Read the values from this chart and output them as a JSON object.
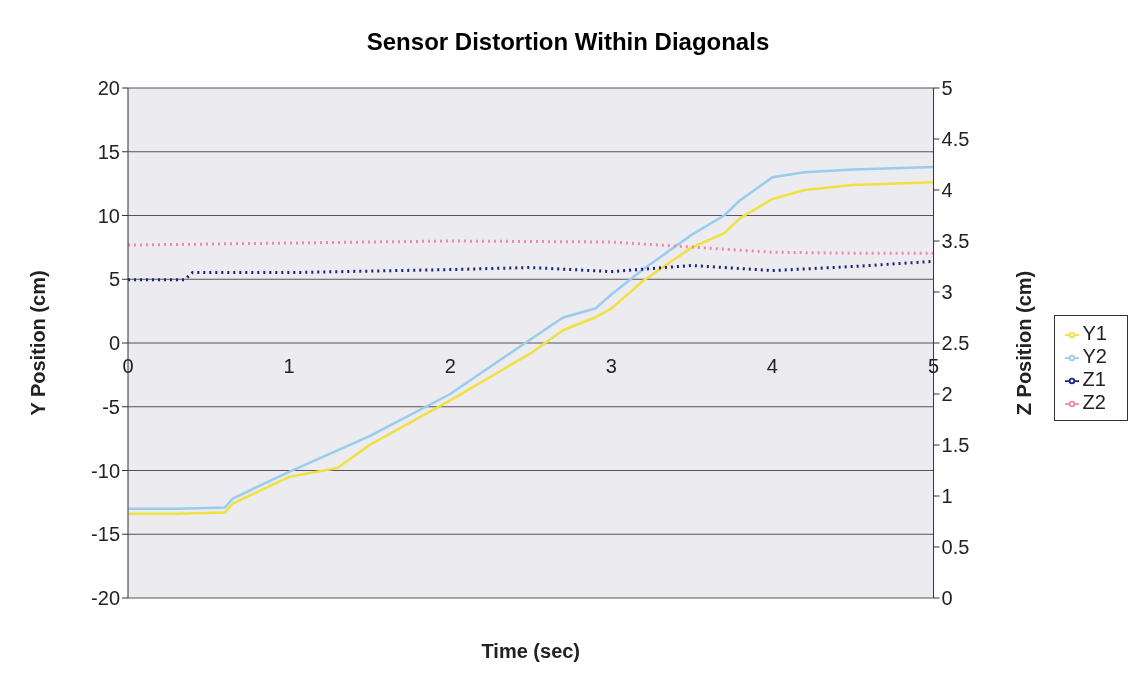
{
  "chart_data": {
    "type": "line",
    "title": "Sensor Distortion Within Diagonals",
    "xlabel": "Time (sec)",
    "ylabel": "Y Position (cm)",
    "y2label": "Z Position (cm)",
    "xlim": [
      0,
      5
    ],
    "xticks": [
      0,
      1,
      2,
      3,
      4,
      5
    ],
    "ylim": [
      -20,
      20
    ],
    "yticks": [
      -20,
      -15,
      -10,
      -5,
      0,
      5,
      10,
      15,
      20
    ],
    "y2lim": [
      0,
      5
    ],
    "y2ticks": [
      0,
      0.5,
      1,
      1.5,
      2,
      2.5,
      3,
      3.5,
      4,
      4.5,
      5
    ],
    "grid": "y",
    "legend": "right",
    "marker": "none",
    "series": [
      {
        "name": "Y1",
        "color": "#f0e040",
        "line_style": "solid",
        "x": [
          0,
          0.3,
          0.6,
          0.65,
          1,
          1.3,
          1.5,
          2,
          2.5,
          2.7,
          2.9,
          3,
          3.2,
          3.5,
          3.7,
          3.8,
          4,
          4.2,
          4.5,
          5
        ],
        "values": [
          -13.4,
          -13.4,
          -13.3,
          -12.6,
          -10.5,
          -9.8,
          -8,
          -4.5,
          -0.8,
          1,
          2,
          2.7,
          4.9,
          7.5,
          8.6,
          9.8,
          11.3,
          12,
          12.4,
          12.6
        ]
      },
      {
        "name": "Y2",
        "color": "#99ccee",
        "line_style": "solid",
        "x": [
          0,
          0.3,
          0.6,
          0.65,
          1,
          1.5,
          2,
          2.5,
          2.7,
          2.9,
          3,
          3.2,
          3.5,
          3.7,
          3.8,
          4,
          4.2,
          4.5,
          5
        ],
        "values": [
          -13,
          -13,
          -12.9,
          -12.2,
          -10.1,
          -7.3,
          -4,
          0.3,
          2,
          2.7,
          3.8,
          5.8,
          8.5,
          10,
          11.2,
          13,
          13.4,
          13.6,
          13.8
        ]
      },
      {
        "name": "Z1",
        "color": "#1a237e",
        "line_style": "dotted",
        "axis": "y2",
        "x": [
          0,
          0.35,
          0.4,
          1,
          2,
          2.5,
          3,
          3.5,
          4,
          4.5,
          5
        ],
        "values": [
          3.12,
          3.12,
          3.19,
          3.19,
          3.22,
          3.24,
          3.2,
          3.26,
          3.21,
          3.25,
          3.3
        ]
      },
      {
        "name": "Z2",
        "color": "#ee88aa",
        "line_style": "dotted",
        "axis": "y2",
        "x": [
          0,
          1,
          2,
          3,
          3.5,
          4,
          4.5,
          5
        ],
        "values": [
          3.46,
          3.48,
          3.5,
          3.49,
          3.44,
          3.39,
          3.38,
          3.38
        ]
      }
    ]
  }
}
